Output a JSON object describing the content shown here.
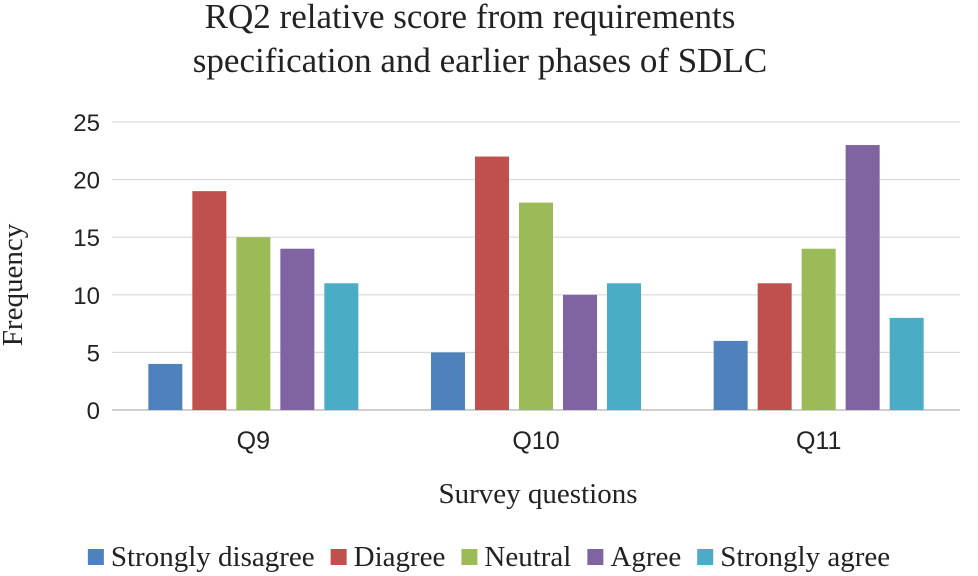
{
  "chart_data": {
    "type": "bar",
    "title_lines": [
      "RQ2 relative score from requirements",
      "specification and earlier phases of SDLC"
    ],
    "xlabel": "Survey questions",
    "ylabel": "Frequency",
    "categories": [
      "Q9",
      "Q10",
      "Q11"
    ],
    "ylim": [
      0,
      25
    ],
    "yticks": [
      0,
      5,
      10,
      15,
      20,
      25
    ],
    "grid": true,
    "legend_position": "bottom",
    "series": [
      {
        "name": "Strongly disagree",
        "color": "#4f81bd",
        "values": [
          4,
          5,
          6
        ]
      },
      {
        "name": "Diagree",
        "color": "#c0504d",
        "values": [
          19,
          22,
          11
        ]
      },
      {
        "name": "Neutral",
        "color": "#9bbb59",
        "values": [
          15,
          18,
          14
        ]
      },
      {
        "name": "Agree",
        "color": "#8064a2",
        "values": [
          14,
          10,
          23
        ]
      },
      {
        "name": "Strongly agree",
        "color": "#4bacc6",
        "values": [
          11,
          11,
          8
        ]
      }
    ]
  }
}
